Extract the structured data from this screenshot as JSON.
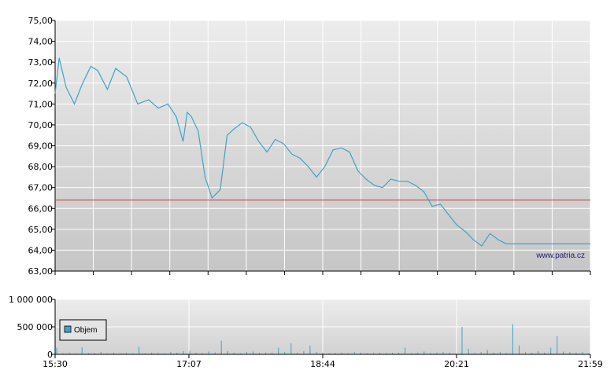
{
  "chart_data": [
    {
      "type": "line",
      "title": "",
      "xlabel": "",
      "ylabel": "",
      "ylim": [
        63,
        75
      ],
      "y_ticks": [
        "63,00",
        "64,00",
        "65,00",
        "66,00",
        "67,00",
        "68,00",
        "69,00",
        "70,00",
        "71,00",
        "72,00",
        "73,00",
        "74,00",
        "75,00"
      ],
      "reference_line": {
        "value": 66.4,
        "color": "#cc3333"
      },
      "series_color": "#3fa3c8",
      "grid": true,
      "watermark": "www.patria.cz",
      "series": [
        {
          "x": [
            "15:30",
            "15:33",
            "15:38",
            "15:44",
            "15:50",
            "15:56",
            "16:01",
            "16:08",
            "16:14",
            "16:22",
            "16:30",
            "16:38",
            "16:45",
            "16:52",
            "16:58",
            "17:03",
            "17:06",
            "17:09",
            "17:14",
            "17:19",
            "17:24",
            "17:30",
            "17:35",
            "17:40",
            "17:46",
            "17:52",
            "17:58",
            "18:04",
            "18:10",
            "18:16",
            "18:22",
            "18:28",
            "18:34",
            "18:40",
            "18:46",
            "18:52",
            "18:58",
            "19:04",
            "19:10",
            "19:16",
            "19:22",
            "19:28",
            "19:34",
            "19:40",
            "19:46",
            "19:52",
            "19:58",
            "20:04",
            "20:10",
            "20:16",
            "20:22",
            "20:28",
            "20:34",
            "20:40",
            "20:46",
            "20:52",
            "20:58",
            "21:04",
            "21:10",
            "21:16",
            "21:22",
            "21:28",
            "21:34",
            "21:40",
            "21:46",
            "21:52",
            "21:57",
            "21:59"
          ],
          "values": [
            71.5,
            73.2,
            71.8,
            71.0,
            72.0,
            72.8,
            72.6,
            71.7,
            72.7,
            72.3,
            71.0,
            71.2,
            70.8,
            71.0,
            70.4,
            69.2,
            70.6,
            70.4,
            69.7,
            67.5,
            66.5,
            66.9,
            69.5,
            69.8,
            70.1,
            69.9,
            69.2,
            68.7,
            69.3,
            69.1,
            68.6,
            68.4,
            68.0,
            67.5,
            68.0,
            68.8,
            68.9,
            68.7,
            67.8,
            67.4,
            67.1,
            67.0,
            67.4,
            67.3,
            67.3,
            67.1,
            66.8,
            66.1,
            66.2,
            65.7,
            65.2,
            64.9,
            64.5,
            64.2,
            64.8,
            64.5,
            64.3,
            64.3,
            64.3,
            64.3,
            64.3,
            64.3,
            64.3,
            64.3,
            64.3,
            64.3,
            64.3,
            64.3
          ]
        }
      ]
    },
    {
      "type": "bar",
      "title": "",
      "ylim": [
        0,
        1000000
      ],
      "y_ticks": [
        "0",
        "500 000",
        "1 000 000"
      ],
      "x_ticks": [
        "15:30",
        "17:07",
        "18:44",
        "20:21",
        "21:59"
      ],
      "legend": "Objem",
      "legend_position": "middle-left",
      "bar_color": "#3fa3c8",
      "series": [
        {
          "name": "Objem",
          "values": [
            120000,
            20000,
            30000,
            15000,
            130000,
            25000,
            20000,
            40000,
            15000,
            30000,
            20000,
            25000,
            15000,
            140000,
            20000,
            30000,
            25000,
            20000,
            40000,
            30000,
            60000,
            70000,
            30000,
            20000,
            50000,
            35000,
            250000,
            60000,
            30000,
            20000,
            40000,
            50000,
            25000,
            30000,
            30000,
            120000,
            40000,
            200000,
            30000,
            60000,
            160000,
            40000,
            30000,
            20000,
            25000,
            30000,
            20000,
            40000,
            30000,
            20000,
            25000,
            30000,
            20000,
            25000,
            30000,
            120000,
            20000,
            30000,
            50000,
            20000,
            30000,
            40000,
            30000,
            20000,
            500000,
            100000,
            30000,
            40000,
            80000,
            30000,
            40000,
            20000,
            550000,
            160000,
            40000,
            30000,
            60000,
            30000,
            120000,
            330000,
            50000,
            40000,
            30000,
            40000,
            20000
          ]
        }
      ]
    }
  ]
}
